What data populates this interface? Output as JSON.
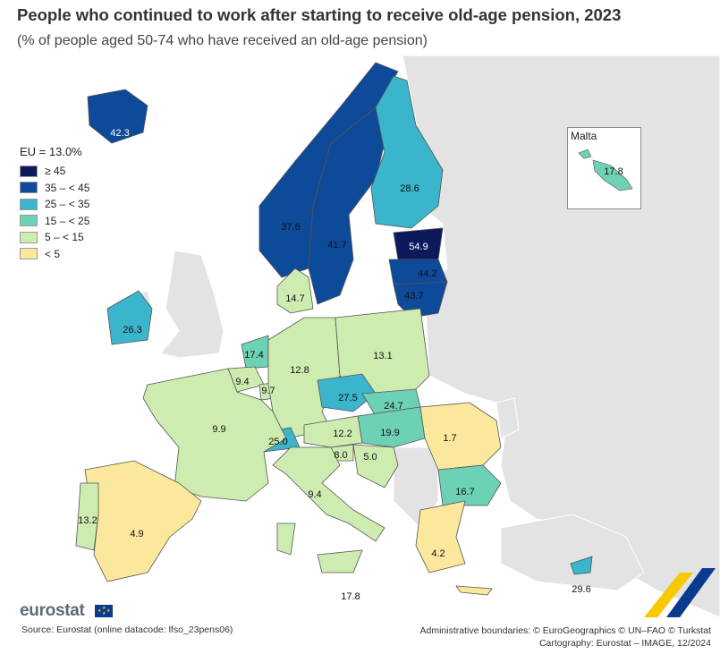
{
  "title": "People who continued to work after starting to receive old-age pension, 2023",
  "subtitle": "(% of people aged 50-74 who have received an old-age pension)",
  "legend": {
    "eu_label": "EU = 13.0%",
    "classes": [
      {
        "label": "≥ 45",
        "color": "#0c1a5c"
      },
      {
        "label": "35 – < 45",
        "color": "#0d4a99"
      },
      {
        "label": "25 – < 35",
        "color": "#3ab5cc"
      },
      {
        "label": "15 – < 25",
        "color": "#6dd2b5"
      },
      {
        "label": "5 – < 15",
        "color": "#cfecb0"
      },
      {
        "label": "< 5",
        "color": "#fbe89c"
      }
    ]
  },
  "countries": {
    "iceland": "42.3",
    "norway": "37.6",
    "sweden": "41.7",
    "finland": "28.6",
    "estonia": "54.9",
    "latvia": "44.2",
    "lithuania": "43.7",
    "denmark": "14.7",
    "ireland": "26.3",
    "netherlands": "17.4",
    "belgium": "9.4",
    "luxembourg": "9.7",
    "germany": "12.8",
    "poland": "13.1",
    "czechia": "27.5",
    "slovakia": "24.7",
    "hungary": "19.9",
    "austria": "12.2",
    "switzerland": "25.0",
    "slovenia": "8.0",
    "croatia": "5.0",
    "romania": "1.7",
    "bulgaria": "16.7",
    "france": "9.9",
    "spain": "4.9",
    "portugal": "13.2",
    "italy": "9.4",
    "malta_main": "17.8",
    "greece": "4.2",
    "cyprus": "29.6",
    "malta": "17.8"
  },
  "malta_inset_title": "Malta",
  "brand": "eurostat",
  "source": "Source: Eurostat (online datacode: lfso_23pens06)",
  "credits_line1": "Administrative boundaries: © EuroGeographics © UN–FAO © Turkstat",
  "credits_line2": "Cartography: Eurostat – IMAGE, 12/2024"
}
